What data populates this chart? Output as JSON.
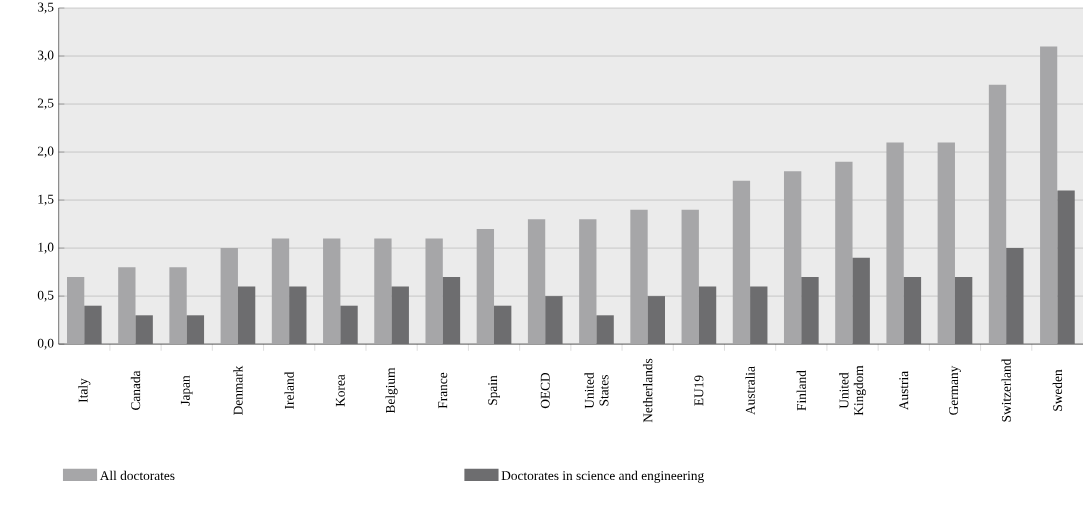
{
  "chart_data": {
    "type": "bar",
    "categories": [
      "Italy",
      "Canada",
      "Japan",
      "Denmark",
      "Ireland",
      "Korea",
      "Belgium",
      "France",
      "Spain",
      "OECD",
      "United States",
      "Netherlands",
      "EU19",
      "Australia",
      "Finland",
      "United Kingdom",
      "Austria",
      "Germany",
      "Switzerland",
      "Sweden"
    ],
    "series": [
      {
        "name": "All doctorates",
        "color": "#a6a6a8",
        "values": [
          0.7,
          0.8,
          0.8,
          1.0,
          1.1,
          1.1,
          1.1,
          1.1,
          1.2,
          1.3,
          1.3,
          1.4,
          1.4,
          1.7,
          1.8,
          1.9,
          2.1,
          2.1,
          2.7,
          3.1
        ]
      },
      {
        "name": "Doctorates in science and engineering",
        "color": "#6d6d6f",
        "values": [
          0.4,
          0.3,
          0.3,
          0.6,
          0.6,
          0.4,
          0.6,
          0.7,
          0.4,
          0.5,
          0.3,
          0.5,
          0.6,
          0.6,
          0.7,
          0.9,
          0.7,
          0.7,
          1.0,
          1.6
        ]
      }
    ],
    "ylim": [
      0,
      3.5
    ],
    "yticks": [
      {
        "value": 0,
        "label": "0,0"
      },
      {
        "value": 0.5,
        "label": "0,5"
      },
      {
        "value": 1.0,
        "label": "1,0"
      },
      {
        "value": 1.5,
        "label": "1,5"
      },
      {
        "value": 2.0,
        "label": "2,0"
      },
      {
        "value": 2.5,
        "label": "2,5"
      },
      {
        "value": 3.0,
        "label": "3,0"
      },
      {
        "value": 3.5,
        "label": "3,5"
      }
    ],
    "grid": "y",
    "legend": "bottom left"
  }
}
